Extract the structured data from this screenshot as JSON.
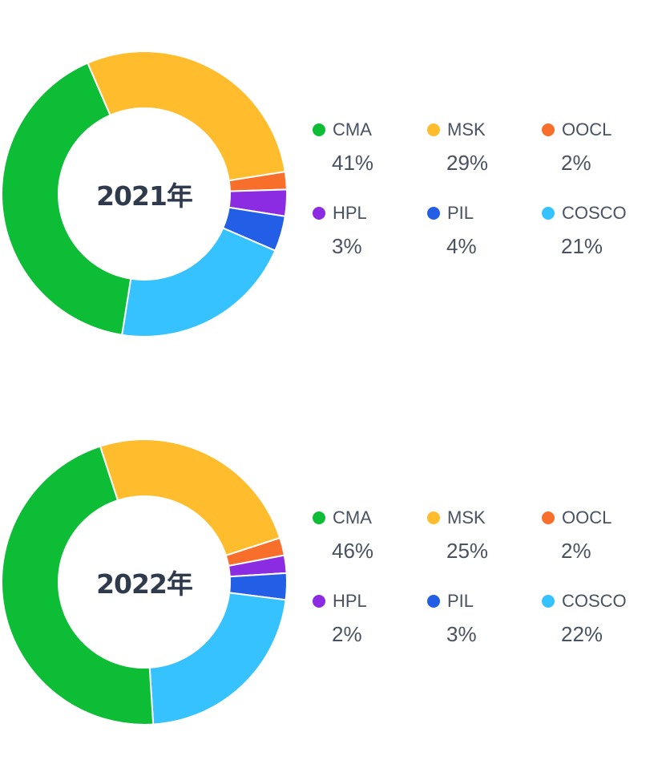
{
  "chart_data": [
    {
      "type": "pie",
      "title": "2021年",
      "categories": [
        "CMA",
        "MSK",
        "OOCL",
        "HPL",
        "PIL",
        "COSCO"
      ],
      "values": [
        41,
        29,
        2,
        3,
        4,
        21
      ],
      "value_labels": [
        "41%",
        "29%",
        "2%",
        "3%",
        "4%",
        "21%"
      ],
      "colors": [
        "#0dbd36",
        "#ffbd2e",
        "#f86f2c",
        "#8b2be2",
        "#225ee6",
        "#36c2ff"
      ],
      "legend": "right"
    },
    {
      "type": "pie",
      "title": "2022年",
      "categories": [
        "CMA",
        "MSK",
        "OOCL",
        "HPL",
        "PIL",
        "COSCO"
      ],
      "values": [
        46,
        25,
        2,
        2,
        3,
        22
      ],
      "value_labels": [
        "46%",
        "25%",
        "2%",
        "2%",
        "3%",
        "22%"
      ],
      "colors": [
        "#0dbd36",
        "#ffbd2e",
        "#f86f2c",
        "#8b2be2",
        "#225ee6",
        "#36c2ff"
      ],
      "legend": "right"
    }
  ]
}
